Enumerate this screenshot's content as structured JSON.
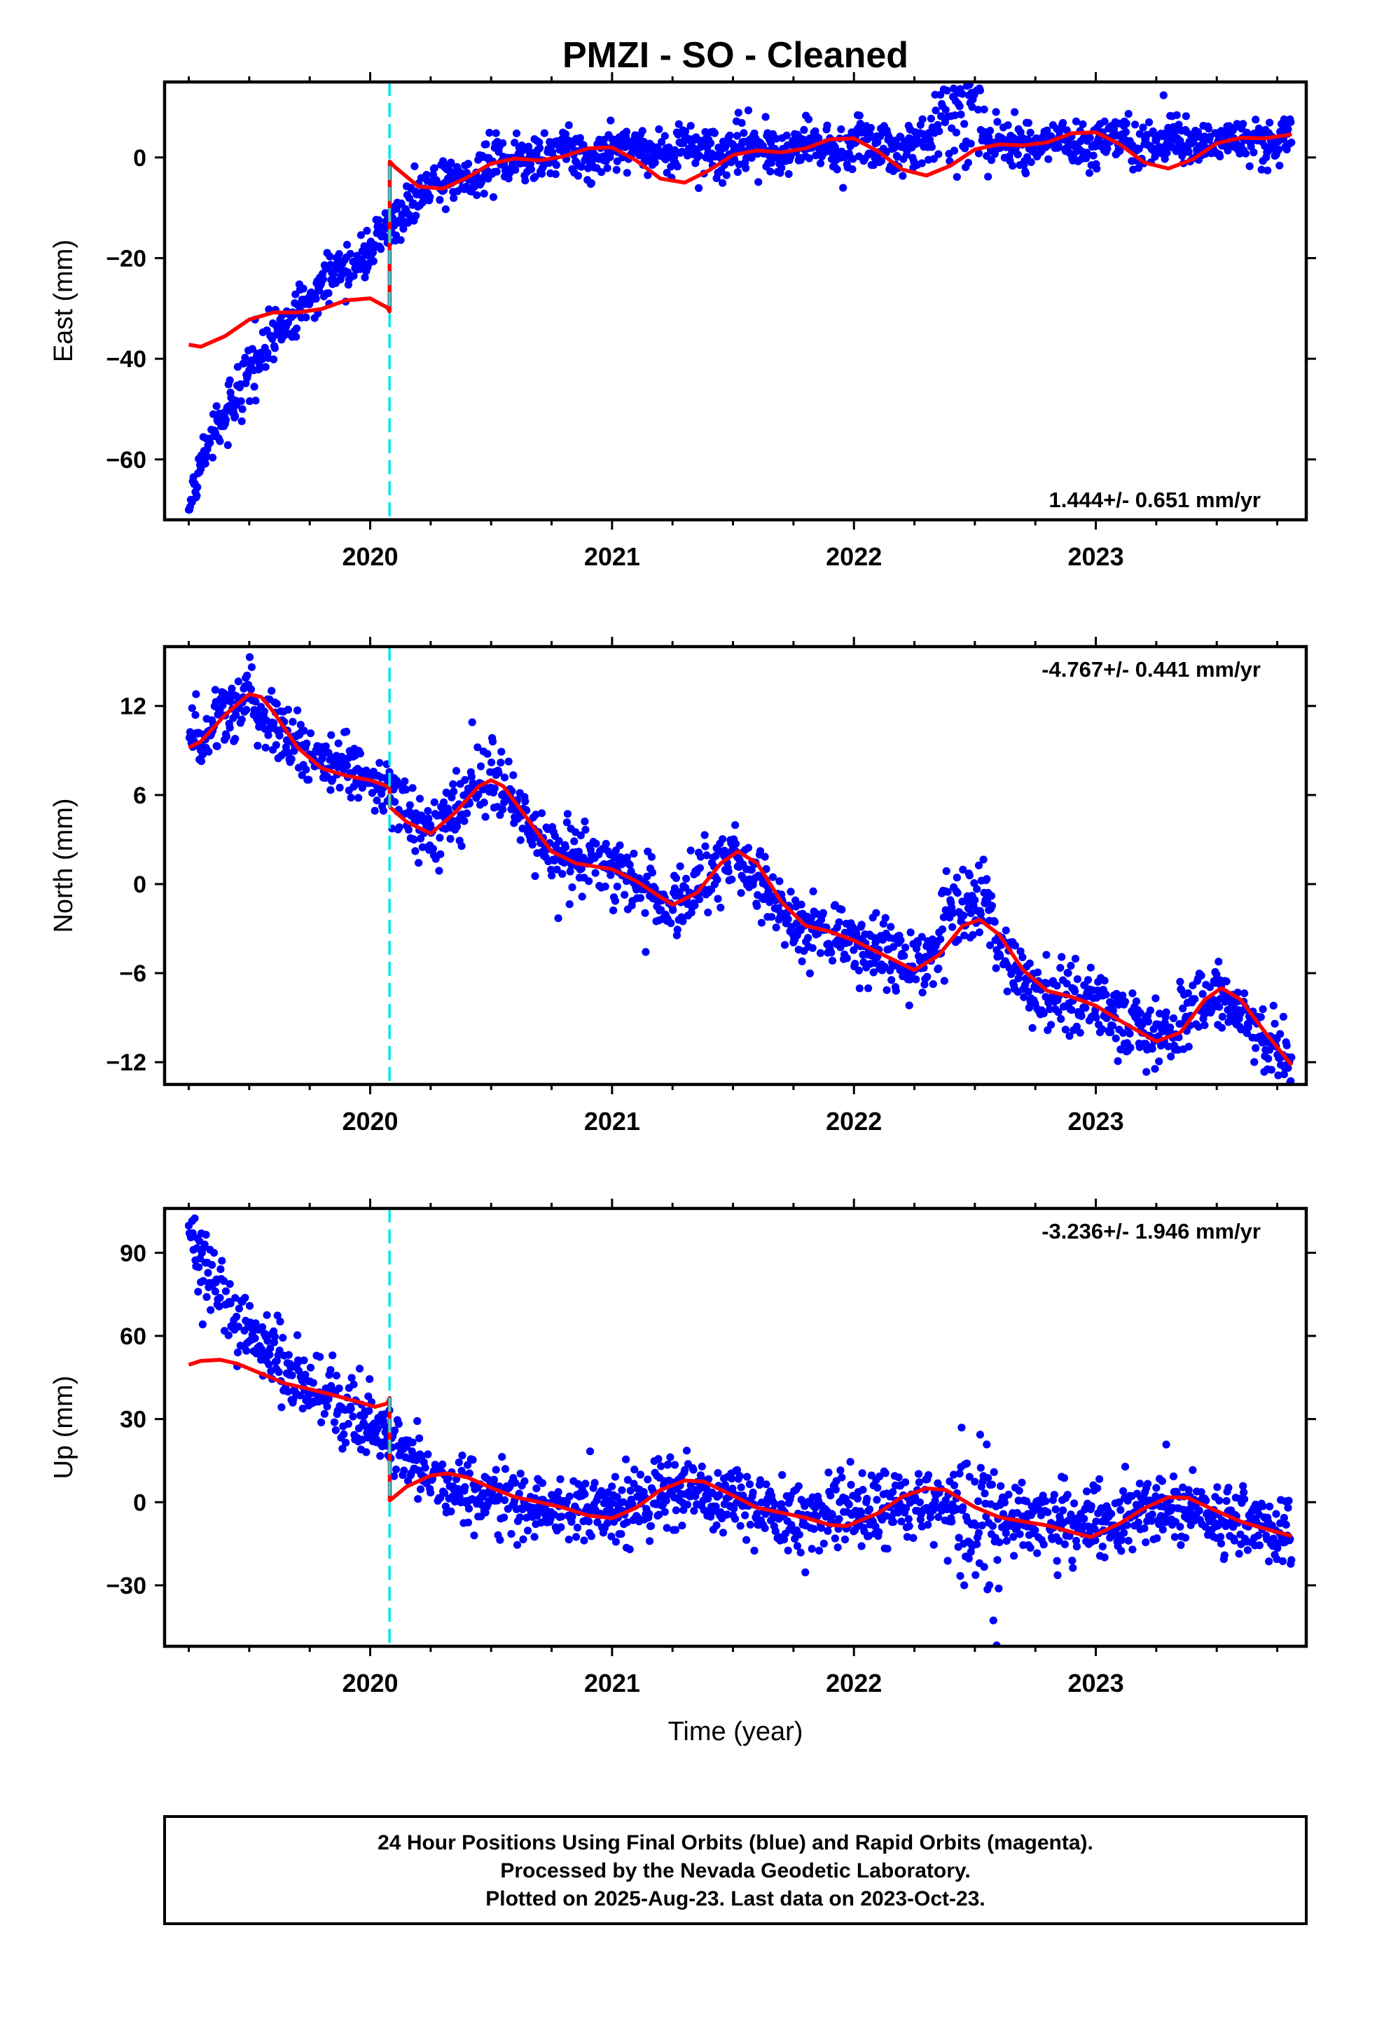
{
  "title": "PMZI  - SO - Cleaned",
  "x_axis_label": "Time (year)",
  "footer": {
    "line1": "24 Hour Positions Using Final Orbits (blue) and Rapid Orbits (magenta).",
    "line2": "Processed by the Nevada Geodetic Laboratory.",
    "line3": "Plotted on 2025-Aug-23. Last data on 2023-Oct-23."
  },
  "colors": {
    "data_points": "#0000ff",
    "model_line": "#ff0000",
    "offset_line": "#00e5ee",
    "frame": "#000000"
  },
  "chart_data": [
    {
      "type": "scatter",
      "component": "east",
      "ylabel": "East (mm)",
      "rate_text": "1.444+/- 0.651 mm/yr",
      "rate_position": "bottom-right",
      "xlim": [
        2019.15,
        2023.87
      ],
      "ylim": [
        -72,
        15
      ],
      "yticks": [
        -60,
        -40,
        -20,
        0
      ],
      "xticks": [
        2020,
        2021,
        2022,
        2023
      ],
      "xticklabels": [
        "2020",
        "2021",
        "2022",
        "2023"
      ],
      "offset_epoch": 2020.08,
      "data_start": 2019.25,
      "data_end": 2023.81,
      "grid": false,
      "trend": [
        [
          2019.25,
          -70
        ],
        [
          2019.35,
          -55
        ],
        [
          2019.5,
          -42
        ],
        [
          2019.7,
          -30
        ],
        [
          2019.9,
          -22
        ],
        [
          2020.08,
          -15
        ],
        [
          2020.2,
          -7
        ],
        [
          2020.4,
          -2.5
        ],
        [
          2020.6,
          -0.5
        ],
        [
          2020.8,
          0.5
        ],
        [
          2021.0,
          1
        ],
        [
          2021.5,
          1.8
        ],
        [
          2022.0,
          2.2
        ],
        [
          2022.5,
          2.5
        ],
        [
          2023.0,
          3
        ],
        [
          2023.81,
          3.5
        ]
      ],
      "model_line": [
        [
          2019.25,
          -37.2
        ],
        [
          2019.3,
          -37.6
        ],
        [
          2019.4,
          -35.5
        ],
        [
          2019.5,
          -32.2
        ],
        [
          2019.6,
          -30.8
        ],
        [
          2019.7,
          -30.8
        ],
        [
          2019.8,
          -30.1
        ],
        [
          2019.9,
          -28.4
        ],
        [
          2020.0,
          -28.0
        ],
        [
          2020.07,
          -29.8
        ],
        [
          2020.08,
          -30.6
        ],
        [
          2020.081,
          -0.8
        ],
        [
          2020.1,
          -1.8
        ],
        [
          2020.2,
          -5.8
        ],
        [
          2020.3,
          -6.2
        ],
        [
          2020.4,
          -4.0
        ],
        [
          2020.5,
          -1.2
        ],
        [
          2020.6,
          -0.2
        ],
        [
          2020.7,
          -0.6
        ],
        [
          2020.8,
          0.2
        ],
        [
          2020.9,
          1.8
        ],
        [
          2021.0,
          2.0
        ],
        [
          2021.1,
          -0.6
        ],
        [
          2021.2,
          -4.2
        ],
        [
          2021.3,
          -5.0
        ],
        [
          2021.4,
          -2.6
        ],
        [
          2021.5,
          0.5
        ],
        [
          2021.6,
          1.4
        ],
        [
          2021.7,
          1.0
        ],
        [
          2021.8,
          1.8
        ],
        [
          2021.9,
          3.6
        ],
        [
          2022.0,
          3.8
        ],
        [
          2022.1,
          1.2
        ],
        [
          2022.2,
          -2.4
        ],
        [
          2022.3,
          -3.6
        ],
        [
          2022.4,
          -1.6
        ],
        [
          2022.5,
          1.6
        ],
        [
          2022.6,
          2.6
        ],
        [
          2022.7,
          2.4
        ],
        [
          2022.8,
          3.0
        ],
        [
          2022.9,
          4.8
        ],
        [
          2023.0,
          5.0
        ],
        [
          2023.1,
          2.6
        ],
        [
          2023.2,
          -1.0
        ],
        [
          2023.3,
          -2.2
        ],
        [
          2023.4,
          -0.4
        ],
        [
          2023.5,
          2.8
        ],
        [
          2023.6,
          3.9
        ],
        [
          2023.7,
          3.8
        ],
        [
          2023.81,
          4.6
        ]
      ],
      "anomalies": [
        {
          "from": 2022.33,
          "to": 2022.53,
          "shift": 8,
          "spread": 5.5
        }
      ],
      "noise": 2.4,
      "seasonal_amp": 0.8
    },
    {
      "type": "scatter",
      "component": "north",
      "ylabel": "North (mm)",
      "rate_text": "-4.767+/- 0.441 mm/yr",
      "rate_position": "top-right",
      "xlim": [
        2019.15,
        2023.87
      ],
      "ylim": [
        -13.5,
        16
      ],
      "yticks": [
        -12,
        -6,
        0,
        6,
        12
      ],
      "xticks": [
        2020,
        2021,
        2022,
        2023
      ],
      "xticklabels": [
        "2020",
        "2021",
        "2022",
        "2023"
      ],
      "offset_epoch": 2020.08,
      "data_start": 2019.25,
      "data_end": 2023.81,
      "grid": false,
      "trend": [
        [
          2019.25,
          9.2
        ],
        [
          2019.5,
          12.8
        ],
        [
          2019.75,
          8.6
        ],
        [
          2020.0,
          7.0
        ],
        [
          2020.08,
          6.4
        ],
        [
          2020.25,
          3.4
        ],
        [
          2020.5,
          7.0
        ],
        [
          2020.75,
          2.2
        ],
        [
          2021.0,
          1.0
        ],
        [
          2021.25,
          -1.4
        ],
        [
          2021.5,
          2.0
        ],
        [
          2021.75,
          -2.8
        ],
        [
          2022.0,
          -4.0
        ],
        [
          2022.25,
          -5.8
        ],
        [
          2022.5,
          -2.4
        ],
        [
          2022.75,
          -7.2
        ],
        [
          2023.0,
          -8.2
        ],
        [
          2023.25,
          -10.6
        ],
        [
          2023.5,
          -7.2
        ],
        [
          2023.81,
          -12.2
        ]
      ],
      "model_line": [
        [
          2019.25,
          9.2
        ],
        [
          2019.3,
          9.6
        ],
        [
          2019.4,
          11.4
        ],
        [
          2019.5,
          12.8
        ],
        [
          2019.55,
          12.6
        ],
        [
          2019.6,
          11.6
        ],
        [
          2019.7,
          9.2
        ],
        [
          2019.8,
          7.8
        ],
        [
          2019.9,
          7.3
        ],
        [
          2020.0,
          7.0
        ],
        [
          2020.07,
          6.6
        ],
        [
          2020.08,
          6.4
        ],
        [
          2020.081,
          5.2
        ],
        [
          2020.15,
          4.2
        ],
        [
          2020.25,
          3.4
        ],
        [
          2020.35,
          4.8
        ],
        [
          2020.45,
          6.6
        ],
        [
          2020.5,
          7.0
        ],
        [
          2020.55,
          6.6
        ],
        [
          2020.65,
          4.4
        ],
        [
          2020.75,
          2.2
        ],
        [
          2020.85,
          1.4
        ],
        [
          2021.0,
          1.0
        ],
        [
          2021.1,
          0.2
        ],
        [
          2021.25,
          -1.4
        ],
        [
          2021.35,
          -0.6
        ],
        [
          2021.45,
          1.4
        ],
        [
          2021.52,
          2.2
        ],
        [
          2021.6,
          1.4
        ],
        [
          2021.7,
          -1.2
        ],
        [
          2021.8,
          -2.8
        ],
        [
          2021.9,
          -3.2
        ],
        [
          2022.0,
          -3.8
        ],
        [
          2022.1,
          -4.6
        ],
        [
          2022.25,
          -5.8
        ],
        [
          2022.35,
          -4.8
        ],
        [
          2022.45,
          -2.8
        ],
        [
          2022.52,
          -2.4
        ],
        [
          2022.6,
          -3.4
        ],
        [
          2022.7,
          -5.8
        ],
        [
          2022.8,
          -7.2
        ],
        [
          2022.9,
          -7.6
        ],
        [
          2023.0,
          -8.2
        ],
        [
          2023.1,
          -9.2
        ],
        [
          2023.25,
          -10.6
        ],
        [
          2023.35,
          -10.0
        ],
        [
          2023.45,
          -7.8
        ],
        [
          2023.52,
          -7.0
        ],
        [
          2023.6,
          -7.8
        ],
        [
          2023.7,
          -10.0
        ],
        [
          2023.81,
          -12.2
        ]
      ],
      "anomalies": [
        {
          "from": 2022.36,
          "to": 2022.58,
          "shift": 1.5,
          "spread": 1.6
        }
      ],
      "noise": 1.1,
      "seasonal_amp": 0
    },
    {
      "type": "scatter",
      "component": "up",
      "ylabel": "Up (mm)",
      "rate_text": "-3.236+/- 1.946 mm/yr",
      "rate_position": "top-right",
      "xlim": [
        2019.15,
        2023.87
      ],
      "ylim": [
        -52,
        106
      ],
      "yticks": [
        -30,
        0,
        30,
        60,
        90
      ],
      "xticks": [
        2020,
        2021,
        2022,
        2023
      ],
      "xticklabels": [
        "2020",
        "2021",
        "2022",
        "2023"
      ],
      "offset_epoch": 2020.08,
      "data_start": 2019.25,
      "data_end": 2023.81,
      "grid": false,
      "trend": [
        [
          2019.25,
          97
        ],
        [
          2019.35,
          80
        ],
        [
          2019.5,
          60
        ],
        [
          2019.7,
          45
        ],
        [
          2019.9,
          32
        ],
        [
          2020.08,
          20
        ],
        [
          2020.3,
          7
        ],
        [
          2020.6,
          0
        ],
        [
          2021.0,
          -3
        ],
        [
          2021.3,
          4
        ],
        [
          2021.6,
          -2
        ],
        [
          2022.0,
          -6
        ],
        [
          2022.3,
          1
        ],
        [
          2022.6,
          -6
        ],
        [
          2023.0,
          -8
        ],
        [
          2023.3,
          -1
        ],
        [
          2023.81,
          -12
        ]
      ],
      "model_line": [
        [
          2019.25,
          49.6
        ],
        [
          2019.3,
          51.0
        ],
        [
          2019.38,
          51.4
        ],
        [
          2019.45,
          50.0
        ],
        [
          2019.55,
          46.4
        ],
        [
          2019.65,
          42.8
        ],
        [
          2019.75,
          40.8
        ],
        [
          2019.85,
          38.6
        ],
        [
          2019.95,
          36.2
        ],
        [
          2020.02,
          34.4
        ],
        [
          2020.07,
          35.6
        ],
        [
          2020.08,
          37.6
        ],
        [
          2020.081,
          0.6
        ],
        [
          2020.15,
          5.6
        ],
        [
          2020.25,
          9.6
        ],
        [
          2020.32,
          10.4
        ],
        [
          2020.4,
          9.0
        ],
        [
          2020.5,
          5.2
        ],
        [
          2020.6,
          1.8
        ],
        [
          2020.7,
          0.0
        ],
        [
          2020.8,
          -2.0
        ],
        [
          2020.9,
          -4.8
        ],
        [
          2021.0,
          -5.8
        ],
        [
          2021.1,
          -2.0
        ],
        [
          2021.2,
          4.4
        ],
        [
          2021.3,
          7.8
        ],
        [
          2021.38,
          7.4
        ],
        [
          2021.5,
          2.4
        ],
        [
          2021.6,
          -2.0
        ],
        [
          2021.7,
          -3.8
        ],
        [
          2021.8,
          -5.6
        ],
        [
          2021.9,
          -8.2
        ],
        [
          2021.97,
          -8.6
        ],
        [
          2022.1,
          -4.0
        ],
        [
          2022.2,
          2.0
        ],
        [
          2022.3,
          5.0
        ],
        [
          2022.38,
          4.4
        ],
        [
          2022.5,
          -1.8
        ],
        [
          2022.6,
          -5.4
        ],
        [
          2022.7,
          -7.0
        ],
        [
          2022.8,
          -8.4
        ],
        [
          2022.9,
          -10.8
        ],
        [
          2022.98,
          -12.6
        ],
        [
          2023.1,
          -7.6
        ],
        [
          2023.2,
          -2.2
        ],
        [
          2023.3,
          1.8
        ],
        [
          2023.38,
          1.6
        ],
        [
          2023.5,
          -3.2
        ],
        [
          2023.6,
          -7.0
        ],
        [
          2023.7,
          -9.6
        ],
        [
          2023.81,
          -12.2
        ]
      ],
      "anomalies": [
        {
          "from": 2022.42,
          "to": 2022.6,
          "shift": 0,
          "spread": 18
        }
      ],
      "noise": 6.5,
      "seasonal_amp": 0
    }
  ]
}
